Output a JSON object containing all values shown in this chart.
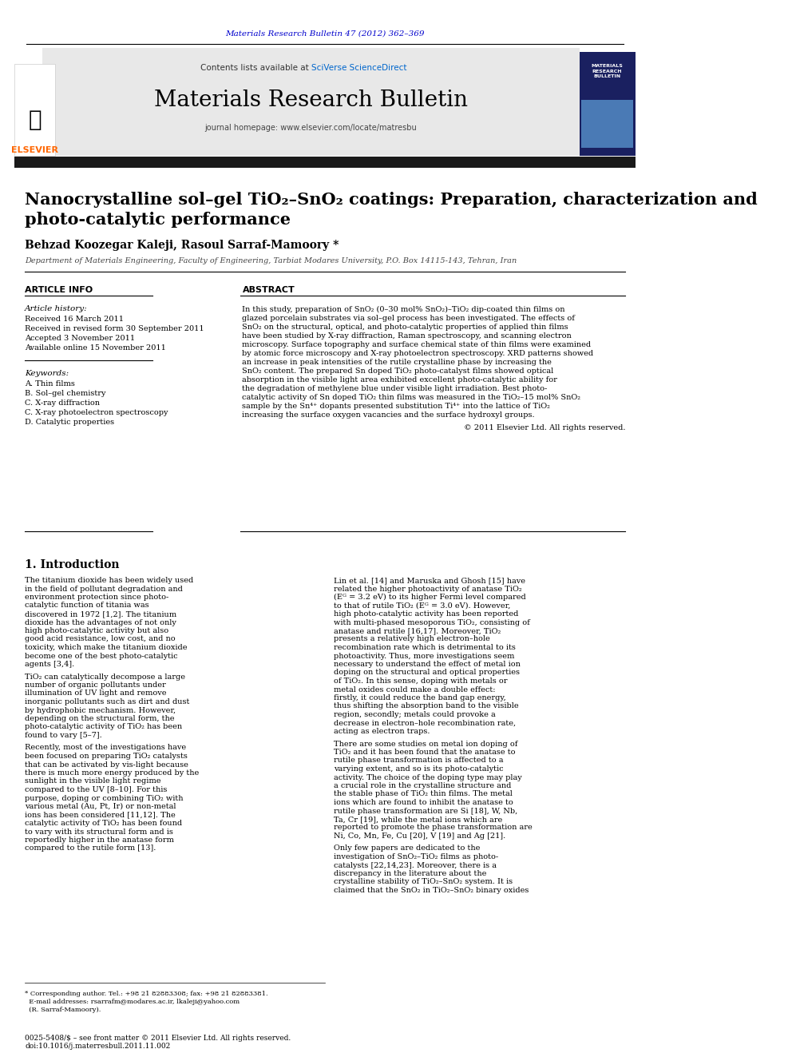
{
  "page_color": "#ffffff",
  "top_citation": "Materials Research Bulletin 47 (2012) 362–369",
  "top_citation_color": "#0000cc",
  "header_bg": "#e8e8e8",
  "header_contents_line": "Contents lists available at SciVerse ScienceDirect",
  "header_sciverse_color": "#0066cc",
  "header_journal_name": "Materials Research Bulletin",
  "header_journal_url": "journal homepage: www.elsevier.com/locate/matresbu",
  "black_bar_color": "#1a1a1a",
  "paper_title_line1": "Nanocrystalline sol–gel TiO₂–SnO₂ coatings: Preparation, characterization and",
  "paper_title_line2": "photo-catalytic performance",
  "authors": "Behzad Koozegar Kaleji, Rasoul Sarraf-Mamoory *",
  "affiliation": "Department of Materials Engineering, Faculty of Engineering, Tarbiat Modares University, P.O. Box 14115-143, Tehran, Iran",
  "section_article_info": "ARTICLE INFO",
  "section_abstract": "ABSTRACT",
  "article_history_label": "Article history:",
  "article_history_lines": [
    "Received 16 March 2011",
    "Received in revised form 30 September 2011",
    "Accepted 3 November 2011",
    "Available online 15 November 2011"
  ],
  "keywords_label": "Keywords:",
  "keywords_lines": [
    "A. Thin films",
    "B. Sol–gel chemistry",
    "C. X-ray diffraction",
    "C. X-ray photoelectron spectroscopy",
    "D. Catalytic properties"
  ],
  "abstract_text": "In this study, preparation of SnO₂ (0–30 mol% SnO₂)–TiO₂ dip-coated thin films on glazed porcelain substrates via sol–gel process has been investigated. The effects of SnO₂ on the structural, optical, and photo-catalytic properties of applied thin films have been studied by X-ray diffraction, Raman spectroscopy, and scanning electron microscopy. Surface topography and surface chemical state of thin films were examined by atomic force microscopy and X-ray photoelectron spectroscopy. XRD patterns showed an increase in peak intensities of the rutile crystalline phase by increasing the SnO₂ content. The prepared Sn doped TiO₂ photo-catalyst films showed optical absorption in the visible light area exhibited excellent photo-catalytic ability for the degradation of methylene blue under visible light irradiation. Best photo-catalytic activity of Sn doped TiO₂ thin films was measured in the TiO₂–15 mol% SnO₂ sample by the Sn⁴⁺ dopants presented substitution Ti⁴⁺ into the lattice of TiO₂ increasing the surface oxygen vacancies and the surface hydroxyl groups.",
  "copyright_line": "© 2011 Elsevier Ltd. All rights reserved.",
  "intro_heading": "1. Introduction",
  "intro_col1_text": "The titanium dioxide has been widely used in the field of pollutant degradation and environment protection since photo-catalytic function of titania was discovered in 1972 [1,2]. The titanium dioxide has the advantages of not only high photo-catalytic activity but also good acid resistance, low cost, and no toxicity, which make the titanium dioxide become one of the best photo-catalytic agents [3,4].\n\n    TiO₂ can catalytically decompose a large number of organic pollutants under illumination of UV light and remove inorganic pollutants such as dirt and dust by hydrophobic mechanism. However, depending on the structural form, the photo-catalytic activity of TiO₂ has been found to vary [5–7].\n\n    Recently, most of the investigations have been focused on preparing TiO₂ catalysts that can be activated by vis-light because there is much more energy produced by the sunlight in the visible light regime compared to the UV [8–10]. For this purpose, doping or combining TiO₂ with various metal (Au, Pt, Ir) or non-metal ions has been considered [11,12]. The catalytic activity of TiO₂ has been found to vary with its structural form and is reportedly higher in the anatase form compared to the rutile form [13].",
  "intro_col2_text": "Lin et al. [14] and Maruska and Ghosh [15] have related the higher photoactivity of anatase TiO₂ (Eᴳ = 3.2 eV) to its higher Fermi level compared to that of rutile TiO₂ (Eᴳ = 3.0 eV). However, high photo-catalytic activity has been reported with multi-phased mesoporous TiO₂, consisting of anatase and rutile [16,17]. Moreover, TiO₂ presents a relatively high electron–hole recombination rate which is detrimental to its photoactivity. Thus, more investigations seem necessary to understand the effect of metal ion doping on the structural and optical properties of TiO₂. In this sense, doping with metals or metal oxides could make a double effect: firstly, it could reduce the band gap energy, thus shifting the absorption band to the visible region, secondly; metals could provoke a decrease in electron–hole recombination rate, acting as electron traps.\n\n    There are some studies on metal ion doping of TiO₂ and it has been found that the anatase to rutile phase transformation is affected to a varying extent, and so is its photo-catalytic activity. The choice of the doping type may play a crucial role in the crystalline structure and the stable phase of TiO₂ thin films. The metal ions which are found to inhibit the anatase to rutile phase transformation are Si [18], W, Nb, Ta, Cr [19], while the metal ions which are reported to promote the phase transformation are Ni, Co, Mn, Fe, Cu [20], V [19] and Ag [21].\n\n    Only few papers are dedicated to the investigation of SnO₂–TiO₂ films as photo-catalysts [22,14,23]. Moreover, there is a discrepancy in the literature about the crystalline stability of TiO₂–SnO₂ system. It is claimed that the SnO₂ in TiO₂–SnO₂ binary oxides",
  "footnote_text": "* Corresponding author. Tel.: +98 21 82883308; fax: +98 21 82883381.\n  E-mail addresses: rsarrafm@modares.ac.ir, lkaleji@yahoo.com\n  (R. Sarraf-Mamoory).",
  "bottom_bar_text": "0025-5408/$ – see front matter © 2011 Elsevier Ltd. All rights reserved.\ndoi:10.1016/j.materresbull.2011.11.002",
  "link_color": "#0000cc",
  "text_color": "#000000",
  "gray_color": "#555555"
}
